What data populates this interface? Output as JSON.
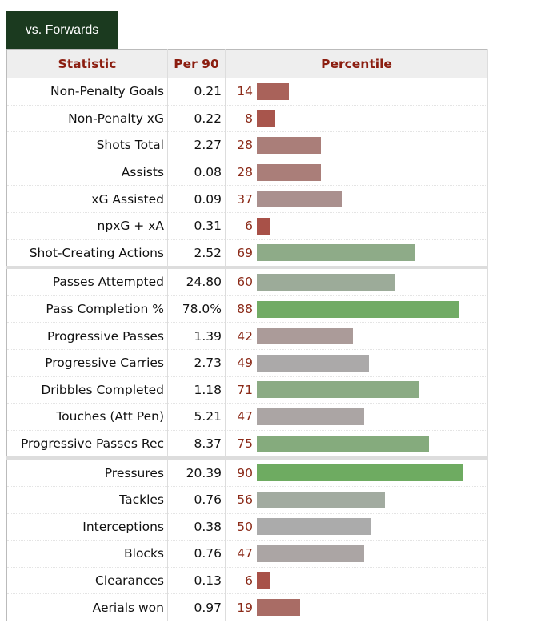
{
  "tab_label": "vs. Forwards",
  "chart_data": {
    "type": "table",
    "columns": [
      "Statistic",
      "Per 90",
      "Percentile"
    ],
    "groups_start": [
      0,
      7,
      14
    ],
    "rows": [
      {
        "stat": "Non-Penalty Goals",
        "per90": "0.21",
        "pct": 14
      },
      {
        "stat": "Non-Penalty xG",
        "per90": "0.22",
        "pct": 8
      },
      {
        "stat": "Shots Total",
        "per90": "2.27",
        "pct": 28
      },
      {
        "stat": "Assists",
        "per90": "0.08",
        "pct": 28
      },
      {
        "stat": "xG Assisted",
        "per90": "0.09",
        "pct": 37
      },
      {
        "stat": "npxG + xA",
        "per90": "0.31",
        "pct": 6
      },
      {
        "stat": "Shot-Creating Actions",
        "per90": "2.52",
        "pct": 69
      },
      {
        "stat": "Passes Attempted",
        "per90": "24.80",
        "pct": 60
      },
      {
        "stat": "Pass Completion %",
        "per90": "78.0%",
        "pct": 88
      },
      {
        "stat": "Progressive Passes",
        "per90": "1.39",
        "pct": 42
      },
      {
        "stat": "Progressive Carries",
        "per90": "2.73",
        "pct": 49
      },
      {
        "stat": "Dribbles Completed",
        "per90": "1.18",
        "pct": 71
      },
      {
        "stat": "Touches (Att Pen)",
        "per90": "5.21",
        "pct": 47
      },
      {
        "stat": "Progressive Passes Rec",
        "per90": "8.37",
        "pct": 75
      },
      {
        "stat": "Pressures",
        "per90": "20.39",
        "pct": 90
      },
      {
        "stat": "Tackles",
        "per90": "0.76",
        "pct": 56
      },
      {
        "stat": "Interceptions",
        "per90": "0.38",
        "pct": 50
      },
      {
        "stat": "Blocks",
        "per90": "0.76",
        "pct": 47
      },
      {
        "stat": "Clearances",
        "per90": "0.13",
        "pct": 6
      },
      {
        "stat": "Aerials won",
        "per90": "0.97",
        "pct": 19
      }
    ],
    "colors": {
      "low": "#a8453a",
      "mid": "#ababab",
      "high": "#5fab4f",
      "header_text": "#8b1d0f",
      "tab_bg": "#1b3a1f"
    }
  }
}
